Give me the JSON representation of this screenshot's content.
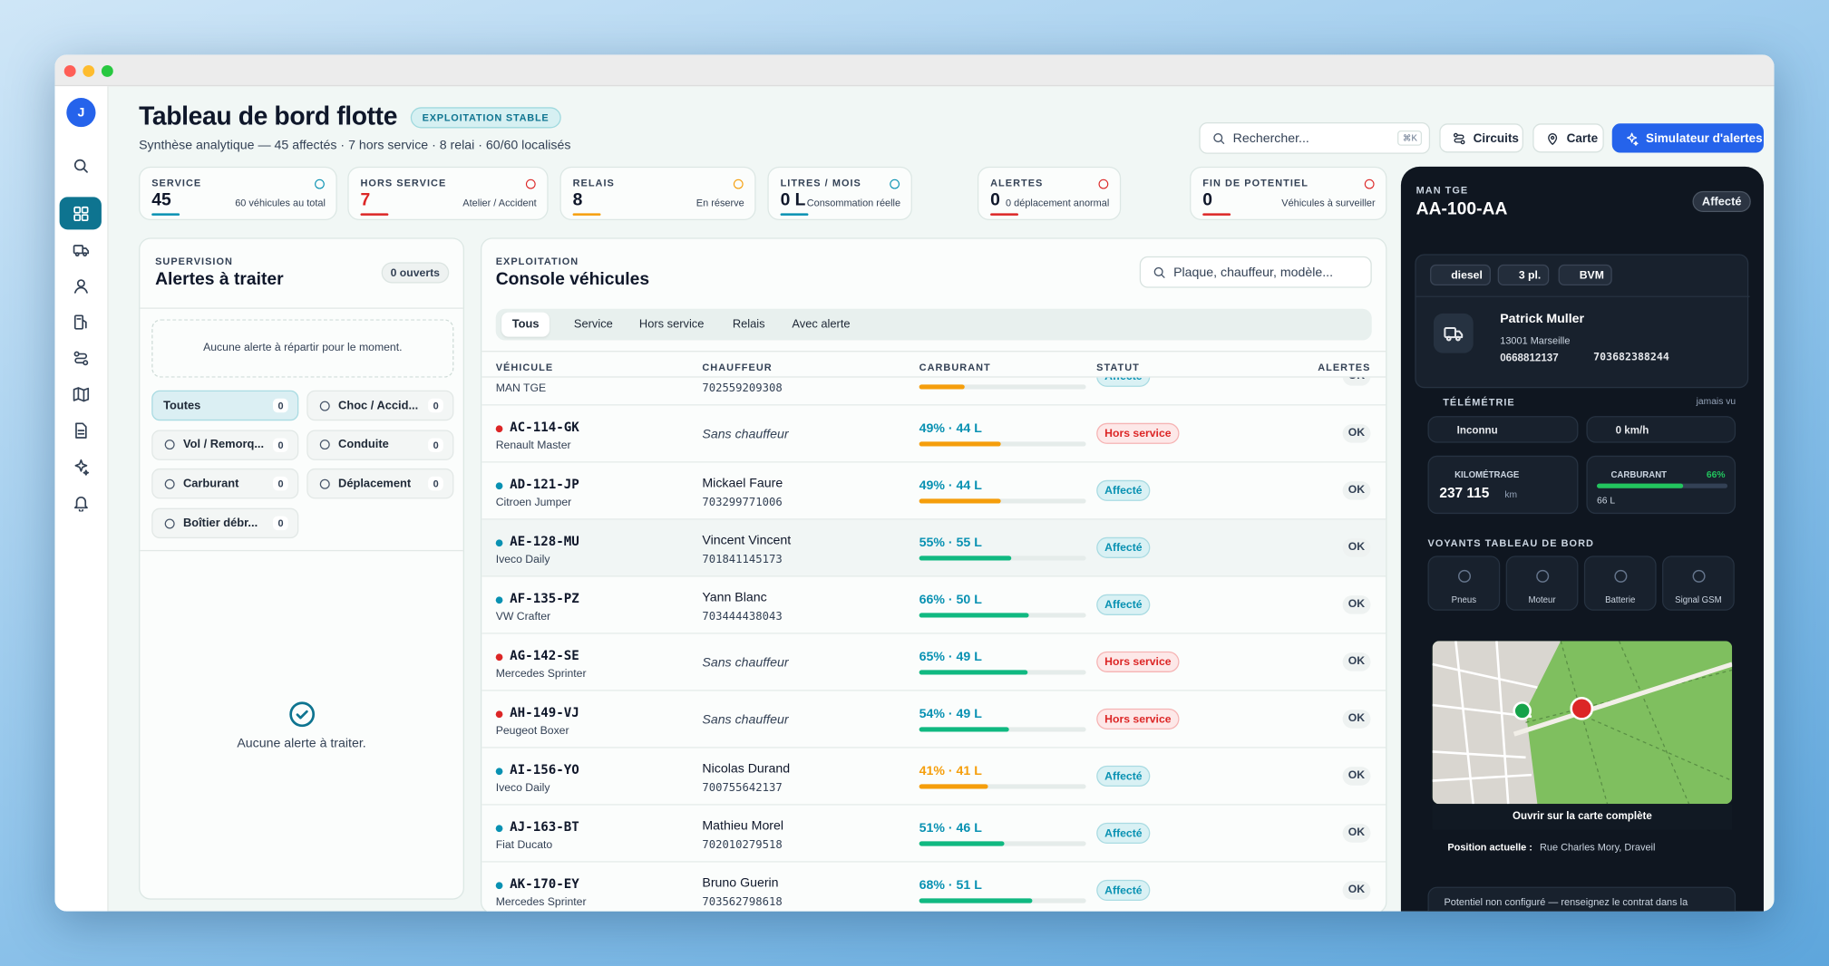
{
  "sidebar": {
    "avatar": "J"
  },
  "header": {
    "title": "Tableau de bord flotte",
    "badge": "EXPLOITATION STABLE",
    "subtitle": "Synthèse analytique — 45 affectés · 7 hors service · 8 relai · 60/60 localisés"
  },
  "toolbar": {
    "search": "Rechercher...",
    "shortcut": "⌘K",
    "buttons": [
      "Circuits",
      "Carte",
      "Simulateur d'alertes"
    ]
  },
  "kpis": [
    {
      "label": "SERVICE",
      "value": "45",
      "note": "60 véhicules au total",
      "color": "#0891b2"
    },
    {
      "label": "HORS SERVICE",
      "value": "7",
      "note": "Atelier / Accident",
      "color": "#dc2626"
    },
    {
      "label": "RELAIS",
      "value": "8",
      "note": "En réserve",
      "color": "#f59e0b"
    },
    {
      "label": "LITRES / MOIS",
      "value": "0 L",
      "note": "Consommation réelle",
      "color": "#0891b2"
    },
    {
      "label": "ALERTES",
      "value": "0",
      "note": "0 déplacement anormal",
      "color": "#dc2626"
    },
    {
      "label": "FIN DE POTENTIEL",
      "value": "0",
      "note": "Véhicules à surveiller",
      "color": "#dc2626"
    }
  ],
  "alerts": {
    "eyebrow": "SUPERVISION",
    "title": "Alertes à traiter",
    "count": "0 ouverts",
    "notice": "Aucune alerte à répartir pour le moment.",
    "filters": [
      {
        "label": "Toutes",
        "count": "0"
      },
      {
        "label": "Choc / Accid...",
        "count": "0"
      },
      {
        "label": "Vol / Remorq...",
        "count": "0"
      },
      {
        "label": "Conduite",
        "count": "0"
      },
      {
        "label": "Carburant",
        "count": "0"
      },
      {
        "label": "Déplacement",
        "count": "0"
      },
      {
        "label": "Boîtier débr...",
        "count": "0"
      }
    ],
    "empty": "Aucune alerte à traiter."
  },
  "console": {
    "eyebrow": "EXPLOITATION",
    "title": "Console véhicules",
    "search": "Plaque, chauffeur, modèle...",
    "tabs": [
      "Tous",
      "Service",
      "Hors service",
      "Relais",
      "Avec alerte"
    ],
    "columns": [
      "VÉHICULE",
      "CHAUFFEUR",
      "CARBURANT",
      "STATUT",
      "ALERTES"
    ],
    "rows": [
      {
        "model": "MAN TGE",
        "phone": "702559209308",
        "fuel_level": 27,
        "fuel_color": "#f59e0b",
        "status": "Affecté",
        "alert": "OK",
        "color": "#0891b2"
      },
      {
        "plate": "AC-114-GK",
        "model": "Renault Master",
        "driver": "Sans chauffeur",
        "fuel": "49% · 44 L",
        "fuel_color": "#f59e0b",
        "status": "Hors service",
        "alert": "OK",
        "color": "#dc2626"
      },
      {
        "plate": "AD-121-JP",
        "model": "Citroen Jumper",
        "driver": "Mickael Faure",
        "phone": "703299771006",
        "fuel": "49% · 44 L",
        "fuel_color": "#f59e0b",
        "status": "Affecté",
        "alert": "OK",
        "color": "#0891b2"
      },
      {
        "plate": "AE-128-MU",
        "model": "Iveco Daily",
        "driver": "Vincent Vincent",
        "phone": "701841145173",
        "fuel": "55% · 55 L",
        "fuel_color": "#10b981",
        "status": "Affecté",
        "alert": "OK",
        "color": "#0891b2"
      },
      {
        "plate": "AF-135-PZ",
        "model": "VW Crafter",
        "driver": "Yann Blanc",
        "phone": "703444438043",
        "fuel": "66% · 50 L",
        "fuel_color": "#10b981",
        "status": "Affecté",
        "alert": "OK",
        "color": "#0891b2"
      },
      {
        "plate": "AG-142-SE",
        "model": "Mercedes Sprinter",
        "driver": "Sans chauffeur",
        "fuel": "65% · 49 L",
        "fuel_color": "#10b981",
        "status": "Hors service",
        "alert": "OK",
        "color": "#dc2626"
      },
      {
        "plate": "AH-149-VJ",
        "model": "Peugeot Boxer",
        "driver": "Sans chauffeur",
        "fuel": "54% · 49 L",
        "fuel_color": "#10b981",
        "status": "Hors service",
        "alert": "OK",
        "color": "#dc2626"
      },
      {
        "plate": "AI-156-YO",
        "model": "Iveco Daily",
        "driver": "Nicolas Durand",
        "phone": "700755642137",
        "fuel": "41% · 41 L",
        "fuel_color": "#f59e0b",
        "status": "Affecté",
        "alert": "OK",
        "color": "#0891b2"
      },
      {
        "plate": "AJ-163-BT",
        "model": "Fiat Ducato",
        "driver": "Mathieu Morel",
        "phone": "702010279518",
        "fuel": "51% · 46 L",
        "fuel_color": "#10b981",
        "status": "Affecté",
        "alert": "OK",
        "color": "#0891b2"
      },
      {
        "plate": "AK-170-EY",
        "model": "Mercedes Sprinter",
        "driver": "Bruno Guerin",
        "phone": "703562798618",
        "fuel": "68% · 51 L",
        "fuel_color": "#10b981",
        "status": "Affecté",
        "alert": "OK",
        "color": "#0891b2"
      }
    ]
  },
  "detail": {
    "eyebrow": "MAN TGE",
    "plate": "AA-100-AA",
    "badge": "Affecté",
    "chips": [
      "diesel",
      "3 pl.",
      "BVM"
    ],
    "driver": {
      "name": "Patrick Muller",
      "city": "13001 Marseille",
      "phones": [
        "0668812137",
        "703682388244"
      ]
    },
    "telemetry": {
      "title": "TÉLÉMÉTRIE",
      "seen": "jamais vu",
      "state": "Inconnu",
      "speed": "0 km/h"
    },
    "mileage": {
      "label": "KILOMÉTRAGE",
      "value": "237 115",
      "unit": "km"
    },
    "fuel": {
      "label": "CARBURANT",
      "percent": 66,
      "percent_label": "66%",
      "liters": "66 L"
    },
    "lights": {
      "title": "VOYANTS TABLEAU DE BORD",
      "items": [
        "Pneus",
        "Moteur",
        "Batterie",
        "Signal GSM"
      ]
    },
    "map_link": "Ouvrir sur la carte complète",
    "position": {
      "label": "Position actuelle :",
      "value": "Rue Charles Mory, Draveil"
    },
    "footer": "Potentiel non configuré — renseignez le contrat dans la"
  }
}
